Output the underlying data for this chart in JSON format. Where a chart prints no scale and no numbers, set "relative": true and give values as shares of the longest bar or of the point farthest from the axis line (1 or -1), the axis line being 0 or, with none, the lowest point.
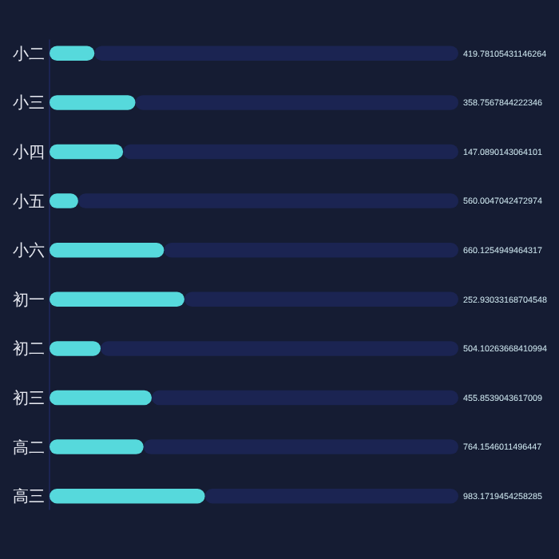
{
  "chart_data": {
    "type": "bar",
    "orientation": "horizontal",
    "relative": true,
    "stacked": true,
    "categories": [
      "小二",
      "小三",
      "小四",
      "小五",
      "小六",
      "初一",
      "初二",
      "初三",
      "高二",
      "高三"
    ],
    "series": [
      {
        "color": "#56d9dc",
        "values": [
          0.11,
          0.21,
          0.18,
          0.07,
          0.28,
          0.33,
          0.125,
          0.25,
          0.23,
          0.38
        ]
      },
      {
        "color": "#1b2452",
        "values": [
          0.89,
          0.79,
          0.82,
          0.93,
          0.72,
          0.67,
          0.875,
          0.75,
          0.77,
          0.62
        ]
      }
    ],
    "annotations": [
      "419.78105431146264",
      "358.7567844222346",
      "147.0890143064101",
      "560.0047042472974",
      "660.1254949464317",
      "252.93033168704548",
      "504.10263668410994",
      "455.8539043617009",
      "764.1546011496447",
      "983.1719454258285"
    ]
  }
}
